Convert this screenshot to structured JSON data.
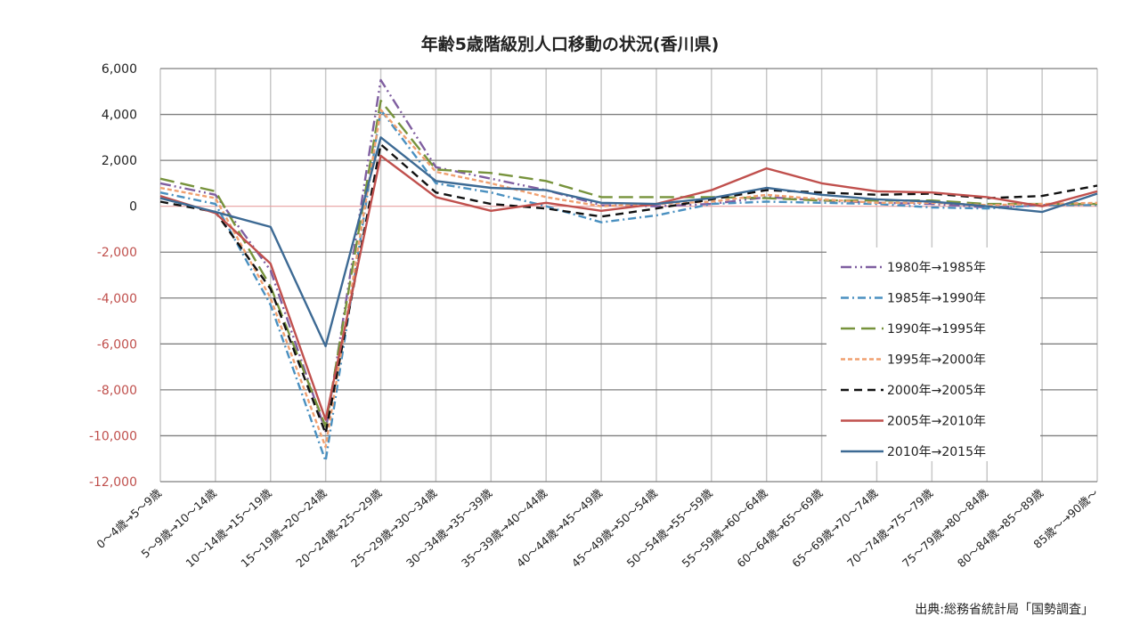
{
  "chart_data": {
    "type": "line",
    "title": "年齢5歳階級別人口移動の状況(香川県)",
    "xlabel": "",
    "ylabel": "",
    "ylim": [
      -12000,
      6000
    ],
    "yticks": [
      6000,
      4000,
      2000,
      0,
      -2000,
      -4000,
      -6000,
      -8000,
      -10000,
      -12000
    ],
    "ytick_labels": [
      "6,000",
      "4,000",
      "2,000",
      "0",
      "-2,000",
      "-4,000",
      "-6,000",
      "-8,000",
      "-10,000",
      "-12,000"
    ],
    "ytick_colors": {
      "positive": "#222222",
      "negative": "#c0504d"
    },
    "grid": true,
    "legend_position": "right-inside",
    "categories": [
      "0～4歳→5～9歳",
      "5～9歳→10～14歳",
      "10～14歳→15～19歳",
      "15～19歳→20～24歳",
      "20～24歳→25～29歳",
      "25～29歳→30～34歳",
      "30～34歳→35～39歳",
      "35～39歳→40～44歳",
      "40～44歳→45～49歳",
      "45～49歳→50～54歳",
      "50～54歳→55～59歳",
      "55～59歳→60～64歳",
      "60～64歳→65～69歳",
      "65～69歳→70～74歳",
      "70～74歳→75～79歳",
      "75～79歳→80～84歳",
      "80～84歳→85～89歳",
      "85歳～→90歳～"
    ],
    "series": [
      {
        "name": "1980年→1985年",
        "color": "#7f5ea0",
        "dash": "12,4,2,4,2,4",
        "values": [
          1000,
          500,
          -2800,
          -9800,
          5500,
          1700,
          1200,
          700,
          50,
          0,
          100,
          400,
          250,
          150,
          100,
          -50,
          50,
          100
        ]
      },
      {
        "name": "1985年→1990年",
        "color": "#4a90c0",
        "dash": "9,4,2,4",
        "values": [
          600,
          100,
          -4300,
          -11100,
          4200,
          1000,
          600,
          0,
          -700,
          -400,
          100,
          200,
          150,
          100,
          -50,
          -100,
          50,
          50
        ]
      },
      {
        "name": "1990年→1995年",
        "color": "#77933c",
        "dash": "16,7",
        "values": [
          1200,
          650,
          -3500,
          -9600,
          4600,
          1600,
          1450,
          1100,
          400,
          400,
          400,
          350,
          250,
          250,
          250,
          100,
          100,
          100
        ]
      },
      {
        "name": "1995年→2000年",
        "color": "#f0a070",
        "dash": "5,3",
        "values": [
          800,
          350,
          -4000,
          -10500,
          4200,
          1500,
          1000,
          400,
          0,
          100,
          200,
          500,
          300,
          150,
          150,
          50,
          100,
          150
        ]
      },
      {
        "name": "2000年→2005年",
        "color": "#111111",
        "dash": "9,6",
        "values": [
          200,
          -250,
          -3600,
          -9900,
          2700,
          600,
          100,
          -100,
          -450,
          -100,
          300,
          700,
          600,
          500,
          550,
          350,
          450,
          900
        ]
      },
      {
        "name": "2005年→2010年",
        "color": "#c0504d",
        "dash": "",
        "values": [
          450,
          -300,
          -2500,
          -9300,
          2200,
          400,
          -200,
          150,
          -200,
          100,
          700,
          1650,
          1000,
          650,
          600,
          400,
          0,
          650
        ]
      },
      {
        "name": "2010年→2015年",
        "color": "#3d6a94",
        "dash": "",
        "values": [
          350,
          -250,
          -900,
          -6100,
          3000,
          1100,
          800,
          700,
          150,
          100,
          350,
          800,
          500,
          300,
          200,
          0,
          -250,
          550
        ]
      }
    ],
    "annotations": [
      "出典:総務省統計局「国勢調査」"
    ]
  },
  "source_note": "出典:総務省統計局「国勢調査」"
}
